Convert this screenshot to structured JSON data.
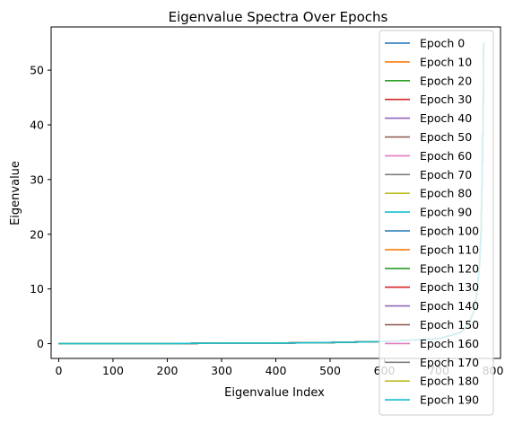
{
  "chart_data": {
    "type": "line",
    "title": "Eigenvalue Spectra Over Epochs",
    "xlabel": "Eigenvalue Index",
    "ylabel": "Eigenvalue",
    "xlim": [
      -14,
      814
    ],
    "ylim": [
      -2.7,
      57.9
    ],
    "x_ticks": [
      0,
      100,
      200,
      300,
      400,
      500,
      600,
      700,
      800
    ],
    "y_ticks": [
      0,
      10,
      20,
      30,
      40,
      50
    ],
    "grid": false,
    "legend_position": "upper right",
    "n_points": 784,
    "series": [
      {
        "name": "Epoch 0",
        "color": "#1f77b4",
        "values": [
          0.0,
          0.0,
          0.0,
          0.1,
          0.1,
          0.2,
          0.4,
          0.9,
          2.0,
          3.5,
          6.0,
          9.0,
          14.0,
          20.0,
          30.0,
          42.0,
          55.0
        ]
      },
      {
        "name": "Epoch 10",
        "color": "#ff7f0e",
        "values": [
          0.0,
          0.0,
          0.0,
          0.1,
          0.1,
          0.2,
          0.4,
          0.9,
          2.0,
          3.5,
          6.0,
          9.0,
          14.0,
          20.0,
          30.0,
          42.0,
          55.0
        ]
      },
      {
        "name": "Epoch 20",
        "color": "#2ca02c",
        "values": [
          0.0,
          0.0,
          0.0,
          0.1,
          0.1,
          0.2,
          0.4,
          0.9,
          2.0,
          3.5,
          6.0,
          9.0,
          14.0,
          20.0,
          30.0,
          42.0,
          55.0
        ]
      },
      {
        "name": "Epoch 30",
        "color": "#d62728",
        "values": [
          0.0,
          0.0,
          0.0,
          0.1,
          0.1,
          0.2,
          0.4,
          0.9,
          2.0,
          3.5,
          6.0,
          9.0,
          14.0,
          20.0,
          30.0,
          42.0,
          55.0
        ]
      },
      {
        "name": "Epoch 40",
        "color": "#9467bd",
        "values": [
          0.0,
          0.0,
          0.0,
          0.1,
          0.1,
          0.2,
          0.4,
          0.9,
          2.0,
          3.5,
          6.0,
          9.0,
          14.0,
          20.0,
          30.0,
          42.0,
          55.0
        ]
      },
      {
        "name": "Epoch 50",
        "color": "#8c564b",
        "values": [
          0.0,
          0.0,
          0.0,
          0.1,
          0.1,
          0.2,
          0.4,
          0.9,
          2.0,
          3.5,
          6.0,
          9.0,
          14.0,
          20.0,
          30.0,
          42.0,
          55.0
        ]
      },
      {
        "name": "Epoch 60",
        "color": "#e377c2",
        "values": [
          0.0,
          0.0,
          0.0,
          0.1,
          0.1,
          0.2,
          0.4,
          0.9,
          2.0,
          3.5,
          6.0,
          9.0,
          14.0,
          20.0,
          30.0,
          42.0,
          55.0
        ]
      },
      {
        "name": "Epoch 70",
        "color": "#7f7f7f",
        "values": [
          0.0,
          0.0,
          0.0,
          0.1,
          0.1,
          0.2,
          0.4,
          0.9,
          2.0,
          3.5,
          6.0,
          9.0,
          14.0,
          20.0,
          30.0,
          42.0,
          55.0
        ]
      },
      {
        "name": "Epoch 80",
        "color": "#bcbd22",
        "values": [
          0.0,
          0.0,
          0.0,
          0.1,
          0.1,
          0.2,
          0.4,
          0.9,
          2.0,
          3.5,
          6.0,
          9.0,
          14.0,
          20.0,
          30.0,
          42.0,
          55.0
        ]
      },
      {
        "name": "Epoch 90",
        "color": "#17becf",
        "values": [
          0.0,
          0.0,
          0.0,
          0.1,
          0.1,
          0.2,
          0.4,
          0.9,
          2.0,
          3.5,
          6.0,
          9.0,
          14.0,
          20.0,
          30.0,
          42.0,
          55.0
        ]
      },
      {
        "name": "Epoch 100",
        "color": "#1f77b4",
        "values": [
          0.0,
          0.0,
          0.0,
          0.1,
          0.1,
          0.2,
          0.4,
          0.9,
          2.0,
          3.5,
          6.0,
          9.0,
          14.0,
          20.0,
          30.0,
          42.0,
          55.0
        ]
      },
      {
        "name": "Epoch 110",
        "color": "#ff7f0e",
        "values": [
          0.0,
          0.0,
          0.0,
          0.1,
          0.1,
          0.2,
          0.4,
          0.9,
          2.0,
          3.5,
          6.0,
          9.0,
          14.0,
          20.0,
          30.0,
          42.0,
          55.0
        ]
      },
      {
        "name": "Epoch 120",
        "color": "#2ca02c",
        "values": [
          0.0,
          0.0,
          0.0,
          0.1,
          0.1,
          0.2,
          0.4,
          0.9,
          2.0,
          3.5,
          6.0,
          9.0,
          14.0,
          20.0,
          30.0,
          42.0,
          55.0
        ]
      },
      {
        "name": "Epoch 130",
        "color": "#d62728",
        "values": [
          0.0,
          0.0,
          0.0,
          0.1,
          0.1,
          0.2,
          0.4,
          0.9,
          2.0,
          3.5,
          6.0,
          9.0,
          14.0,
          20.0,
          30.0,
          42.0,
          55.0
        ]
      },
      {
        "name": "Epoch 140",
        "color": "#9467bd",
        "values": [
          0.0,
          0.0,
          0.0,
          0.1,
          0.1,
          0.2,
          0.4,
          0.9,
          2.0,
          3.5,
          6.0,
          9.0,
          14.0,
          20.0,
          30.0,
          42.0,
          55.0
        ]
      },
      {
        "name": "Epoch 150",
        "color": "#8c564b",
        "values": [
          0.0,
          0.0,
          0.0,
          0.1,
          0.1,
          0.2,
          0.4,
          0.9,
          2.0,
          3.5,
          6.0,
          9.0,
          14.0,
          20.0,
          30.0,
          42.0,
          55.0
        ]
      },
      {
        "name": "Epoch 160",
        "color": "#e377c2",
        "values": [
          0.0,
          0.0,
          0.0,
          0.1,
          0.1,
          0.2,
          0.4,
          0.9,
          2.0,
          3.5,
          6.0,
          9.0,
          14.0,
          20.0,
          30.0,
          42.0,
          55.0
        ]
      },
      {
        "name": "Epoch 170",
        "color": "#7f7f7f",
        "values": [
          0.0,
          0.0,
          0.0,
          0.1,
          0.1,
          0.2,
          0.4,
          0.9,
          2.0,
          3.5,
          6.0,
          9.0,
          14.0,
          20.0,
          30.0,
          42.0,
          55.0
        ]
      },
      {
        "name": "Epoch 180",
        "color": "#bcbd22",
        "values": [
          0.0,
          0.0,
          0.0,
          0.1,
          0.1,
          0.2,
          0.4,
          0.9,
          2.0,
          3.5,
          6.0,
          9.0,
          14.0,
          20.0,
          30.0,
          42.0,
          55.0
        ]
      },
      {
        "name": "Epoch 190",
        "color": "#17becf",
        "values": [
          0.0,
          0.0,
          0.0,
          0.1,
          0.1,
          0.2,
          0.4,
          0.9,
          2.0,
          3.5,
          6.0,
          9.0,
          14.0,
          20.0,
          30.0,
          42.0,
          55.0
        ]
      }
    ],
    "x": [
      0,
      100,
      200,
      300,
      400,
      500,
      600,
      700,
      740,
      755,
      765,
      770,
      775,
      778,
      780,
      782,
      783
    ]
  }
}
